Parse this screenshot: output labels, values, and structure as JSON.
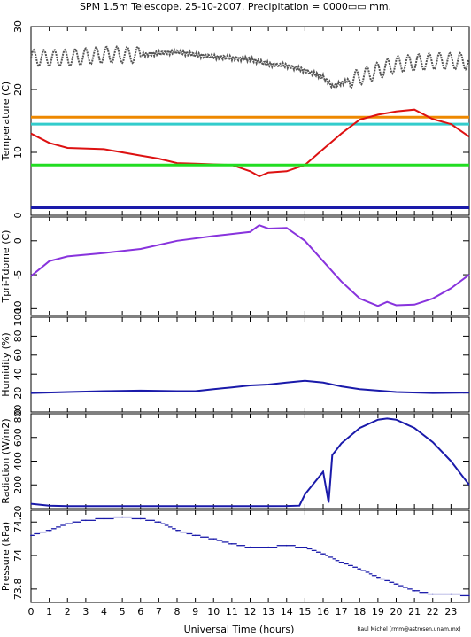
{
  "title": "SPM 1.5m Telescope. 25-10-2007. Precipitation = 0000▭▭ mm.",
  "credit": "Raul Michel (rmm@astrosen.unam.mx)",
  "xlabel": "Universal Time (hours)",
  "chart_data": [
    {
      "type": "line",
      "ylabel": "Temperature (C)",
      "xlim": [
        0,
        24
      ],
      "ylim": [
        0,
        30
      ],
      "yticks": [
        0,
        10,
        20,
        30
      ],
      "series": [
        {
          "color": "#555555",
          "style": "dotted-scatter",
          "x": [
            0,
            2,
            4,
            6,
            8,
            9,
            10,
            12,
            13,
            14,
            15,
            16,
            16.5,
            17,
            18,
            19,
            20,
            22,
            24
          ],
          "y": [
            25,
            25,
            25.5,
            25.5,
            26,
            25.5,
            25.2,
            24.8,
            24,
            23.8,
            23,
            22,
            20.5,
            21,
            22,
            23,
            24,
            24.5,
            24.5
          ],
          "oscillation_amplitude": 1.3
        },
        {
          "color": "#ee8800",
          "style": "line",
          "x": [
            0,
            24
          ],
          "y": [
            15.6,
            15.6
          ]
        },
        {
          "color": "#33cccc",
          "style": "line",
          "x": [
            0,
            24
          ],
          "y": [
            14.5,
            14.5
          ]
        },
        {
          "color": "#dd1111",
          "style": "line",
          "x": [
            0,
            1,
            2,
            4,
            6,
            7,
            8,
            9,
            10,
            11,
            12,
            12.5,
            13,
            14,
            15,
            16,
            17,
            18,
            19,
            20,
            21,
            22,
            23,
            24
          ],
          "y": [
            13,
            11.5,
            10.7,
            10.5,
            9.5,
            9,
            8.3,
            8.2,
            8.1,
            8,
            7,
            6.2,
            6.8,
            7,
            8,
            10.5,
            13,
            15.2,
            16,
            16.5,
            16.8,
            15.3,
            14.5,
            12.5
          ]
        },
        {
          "color": "#22dd22",
          "style": "line",
          "x": [
            0,
            24
          ],
          "y": [
            8,
            8
          ]
        },
        {
          "color": "#1a1aaa",
          "style": "line",
          "x": [
            0,
            24
          ],
          "y": [
            1.2,
            1.2
          ]
        }
      ]
    },
    {
      "type": "line",
      "ylabel": "Tpri-Tdome (C)",
      "xlim": [
        0,
        24
      ],
      "ylim": [
        -11,
        3.5
      ],
      "yticks": [
        0,
        -5,
        -10
      ],
      "series": [
        {
          "color": "#8833dd",
          "style": "line",
          "x": [
            0,
            1,
            2,
            4,
            6,
            8,
            10,
            12,
            12.5,
            13,
            14,
            15,
            16,
            17,
            18,
            19,
            19.5,
            20,
            21,
            22,
            23,
            24
          ],
          "y": [
            -5.2,
            -3,
            -2.3,
            -1.8,
            -1.2,
            0,
            0.7,
            1.3,
            2.3,
            1.8,
            1.9,
            0,
            -3,
            -6,
            -8.5,
            -9.6,
            -9,
            -9.5,
            -9.4,
            -8.5,
            -7,
            -5
          ]
        }
      ]
    },
    {
      "type": "line",
      "ylabel": "Humidity (%)",
      "xlim": [
        0,
        24
      ],
      "ylim": [
        0,
        100
      ],
      "yticks": [
        0,
        20,
        40,
        60,
        80,
        100
      ],
      "series": [
        {
          "color": "#1a1aaa",
          "style": "line",
          "x": [
            0,
            2,
            4,
            6,
            8,
            9,
            10,
            11,
            12,
            13,
            14,
            15,
            16,
            17,
            18,
            20,
            22,
            24
          ],
          "y": [
            20,
            21,
            22,
            22.5,
            22,
            22,
            24,
            26,
            28,
            29,
            31,
            33,
            31,
            27,
            24,
            21,
            20,
            20.5
          ]
        }
      ]
    },
    {
      "type": "line",
      "ylabel": "Radiation (W/m2)",
      "xlim": [
        0,
        24
      ],
      "ylim": [
        0,
        800
      ],
      "yticks": [
        0,
        200,
        400,
        600,
        800
      ],
      "series": [
        {
          "color": "#1a1aaa",
          "style": "line",
          "x": [
            0,
            1,
            2,
            4,
            6,
            8,
            10,
            12,
            14,
            14.7,
            15,
            16,
            16.3,
            16.5,
            17,
            18,
            19,
            19.5,
            20,
            21,
            22,
            23,
            24
          ],
          "y": [
            40,
            25,
            20,
            20,
            20,
            20,
            20,
            20,
            22,
            25,
            120,
            310,
            50,
            450,
            550,
            680,
            750,
            760,
            750,
            680,
            560,
            400,
            200
          ]
        }
      ]
    },
    {
      "type": "scatter",
      "ylabel": "Pressure (kPa)",
      "xlim": [
        0,
        24
      ],
      "ylim": [
        73.72,
        74.27
      ],
      "yticks": [
        73.8,
        74,
        74.2
      ],
      "series": [
        {
          "color": "#1a1aaa",
          "style": "scatter",
          "x": [
            0,
            1,
            2,
            3,
            4,
            5,
            6,
            7,
            8,
            9,
            10,
            11,
            12,
            13,
            14,
            15,
            16,
            17,
            18,
            19,
            20,
            21,
            22,
            23,
            24
          ],
          "y": [
            74.12,
            74.15,
            74.19,
            74.21,
            74.22,
            74.23,
            74.22,
            74.2,
            74.15,
            74.12,
            74.1,
            74.07,
            74.05,
            74.05,
            74.06,
            74.05,
            74.01,
            73.96,
            73.92,
            73.87,
            73.83,
            73.79,
            73.77,
            73.77,
            73.76
          ]
        }
      ]
    }
  ]
}
